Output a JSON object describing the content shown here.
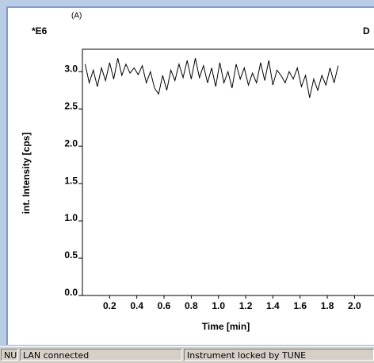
{
  "chart_data": {
    "type": "line",
    "annotations": [
      "(A)",
      "*E6",
      "D"
    ],
    "ylabel": "int. Intensity [cps]",
    "xlabel": "Time [min]",
    "color": "#000000",
    "xlim": [
      0,
      2.12
    ],
    "ylim": [
      0,
      3.3
    ],
    "xticks": [
      0.2,
      0.4,
      0.6,
      0.8,
      {
        "value": 1.0,
        "label": "1.0"
      },
      1.2,
      1.4,
      1.6,
      1.8,
      {
        "value": 2.0,
        "label": "2.0"
      }
    ],
    "yticks": [
      {
        "value": 0.0,
        "label": "0.0"
      },
      0.5,
      {
        "value": 1.0,
        "label": "1.0"
      },
      1.5,
      {
        "value": 2.0,
        "label": "2.0"
      },
      2.5,
      {
        "value": 3.0,
        "label": "3.0"
      }
    ],
    "x": [
      0.02,
      0.05,
      0.08,
      0.11,
      0.14,
      0.17,
      0.2,
      0.23,
      0.26,
      0.29,
      0.32,
      0.35,
      0.38,
      0.41,
      0.44,
      0.47,
      0.5,
      0.53,
      0.56,
      0.59,
      0.62,
      0.65,
      0.68,
      0.71,
      0.74,
      0.77,
      0.8,
      0.83,
      0.86,
      0.89,
      0.92,
      0.95,
      0.98,
      1.01,
      1.04,
      1.07,
      1.1,
      1.13,
      1.16,
      1.19,
      1.22,
      1.25,
      1.28,
      1.31,
      1.34,
      1.37,
      1.4,
      1.43,
      1.46,
      1.49,
      1.52,
      1.55,
      1.58,
      1.61,
      1.64,
      1.67,
      1.7,
      1.73,
      1.76,
      1.79,
      1.82,
      1.85,
      1.88
    ],
    "values": [
      3.1,
      2.85,
      3.02,
      2.8,
      3.05,
      2.88,
      3.12,
      2.9,
      3.18,
      2.95,
      3.1,
      2.98,
      3.05,
      2.96,
      3.08,
      2.85,
      3.0,
      2.78,
      2.7,
      2.95,
      2.75,
      3.02,
      2.88,
      3.1,
      2.92,
      3.15,
      2.9,
      3.18,
      2.92,
      3.08,
      2.85,
      3.05,
      2.8,
      3.12,
      2.85,
      3.0,
      2.78,
      3.1,
      2.9,
      3.05,
      2.82,
      2.98,
      2.85,
      3.12,
      2.88,
      3.15,
      2.82,
      3.02,
      2.95,
      2.85,
      3.0,
      2.9,
      3.05,
      2.8,
      2.95,
      2.65,
      2.9,
      2.75,
      2.95,
      2.82,
      3.05,
      2.85,
      3.08
    ]
  },
  "status_bar": {
    "items": [
      "NUM",
      "LAN connected",
      "Instrument locked by TUNE"
    ]
  }
}
